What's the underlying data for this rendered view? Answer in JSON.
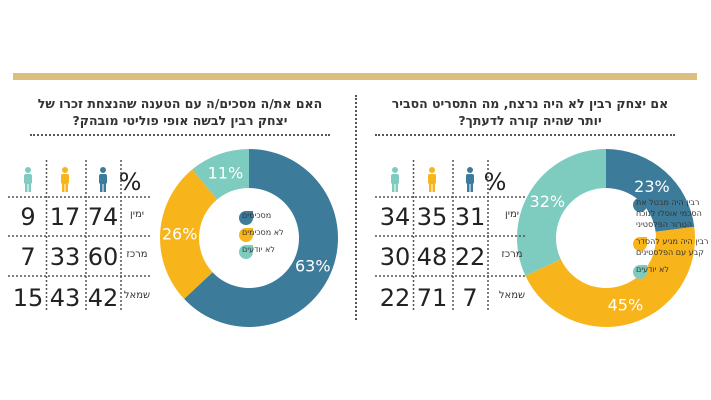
{
  "colors": {
    "agree": "#3d7b9b",
    "disagree": "#f7b51b",
    "unknown": "#7ecbbf",
    "bar": "#dcbf7e"
  },
  "chart_data": [
    {
      "type": "pie",
      "donut": true,
      "title": "אם יצחק רבין לא היה נרצח, מה התסריט הסביר יותר שהיה קורה לדעתך?",
      "slices": [
        {
          "label": "רבין היה מבטל את הסכמי אוסלו לנוכח הטרור הפלסטיני",
          "value": 23,
          "display": "23%",
          "color": "#3d7b9b",
          "legend_lines": [
            "רבין היה מבטל את",
            "הסכמי אוסלו לנוכח",
            "הטרור הפלסטיני"
          ]
        },
        {
          "label": "רבין היה מגיע להסדר קבע עם הפלסטינים",
          "value": 45,
          "display": "45%",
          "color": "#f7b51b",
          "legend_lines": [
            "רבין היה מגיע להסדר",
            "קבע עם הפלסטינים"
          ]
        },
        {
          "label": "לא יודעים",
          "value": 32,
          "display": "32%",
          "color": "#7ecbbf",
          "legend_lines": [
            "לא יודעים"
          ]
        }
      ],
      "table": {
        "header": "%",
        "rows": [
          {
            "label": "ימין",
            "values": [
              31,
              35,
              34
            ]
          },
          {
            "label": "מרכז",
            "values": [
              22,
              48,
              30
            ]
          },
          {
            "label": "שמאל",
            "values": [
              7,
              71,
              22
            ]
          }
        ]
      }
    },
    {
      "type": "pie",
      "donut": true,
      "title": "האם את/ה מסכים/ה עם הטענה שהנצחת זכרו של יצחק רבין לבשה אופי פוליטי מובהק?",
      "slices": [
        {
          "label": "מסכימים",
          "value": 63,
          "display": "63%",
          "color": "#3d7b9b",
          "legend_lines": [
            "מסכימים"
          ]
        },
        {
          "label": "לא מסכימים",
          "value": 26,
          "display": "26%",
          "color": "#f7b51b",
          "legend_lines": [
            "לא מסכימים"
          ]
        },
        {
          "label": "לא יודעים",
          "value": 11,
          "display": "11%",
          "color": "#7ecbbf",
          "legend_lines": [
            "לא יודעים"
          ]
        }
      ],
      "table": {
        "header": "%",
        "rows": [
          {
            "label": "ימין",
            "values": [
              74,
              17,
              9
            ]
          },
          {
            "label": "מרכז",
            "values": [
              60,
              33,
              7
            ]
          },
          {
            "label": "שמאל",
            "values": [
              42,
              43,
              15
            ]
          }
        ]
      }
    }
  ]
}
